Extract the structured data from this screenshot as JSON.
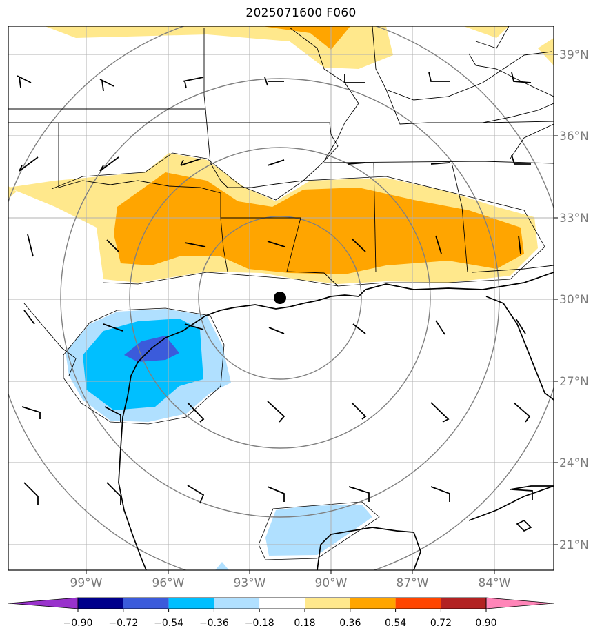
{
  "title": "2025071600 F060",
  "map": {
    "lon_range": [
      -101.83,
      -81.7
    ],
    "lat_range": [
      20.0,
      40.0
    ],
    "gridlines": true,
    "longitude_labels": [
      "99°W",
      "96°W",
      "93°W",
      "90°W",
      "87°W",
      "84°W"
    ],
    "longitude_values": [
      -99,
      -96,
      -93,
      -90,
      -87,
      -84
    ],
    "latitude_labels": [
      "39°N",
      "36°N",
      "33°N",
      "30°N",
      "27°N",
      "24°N",
      "21°N"
    ],
    "latitude_values": [
      39,
      36,
      33,
      30,
      27,
      24,
      21
    ],
    "center_marker": {
      "lon": -91.8,
      "lat": 30.1,
      "icon": "filled-circle-icon"
    },
    "range_rings": "concentric circles around center marker",
    "overlays": [
      "state and country borders",
      "coastlines",
      "wind barbs"
    ]
  },
  "colorbar": {
    "extend": "both",
    "colors": [
      "#9932cc",
      "#00008b",
      "#3b5bdb",
      "#00bfff",
      "#b0e0ff",
      "#ffffff",
      "#ffe88c",
      "#ffa500",
      "#ff4500",
      "#b22222",
      "#ff85b8"
    ],
    "tick_labels": [
      "−0.90",
      "−0.72",
      "−0.54",
      "−0.36",
      "−0.18",
      "0.18",
      "0.36",
      "0.54",
      "0.72",
      "0.90"
    ]
  }
}
